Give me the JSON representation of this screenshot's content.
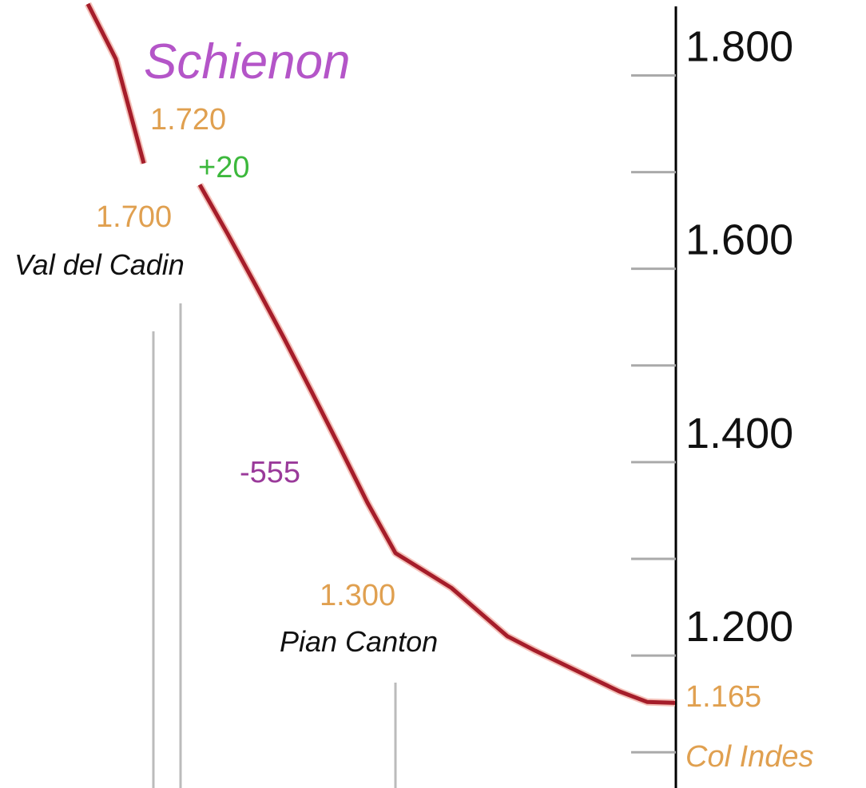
{
  "chart_data": {
    "type": "line",
    "categories": [
      null,
      null,
      null,
      null,
      null,
      null,
      null,
      null,
      null,
      null,
      null,
      null,
      null,
      null,
      null,
      null,
      null,
      null,
      null,
      null,
      null,
      null
    ],
    "series": [
      {
        "color": "#a51d2a",
        "values": [
          1874,
          1817,
          1709,
          null,
          1687,
          1636,
          1583,
          1529,
          1473,
          1416,
          1358,
          1306,
          1288,
          1270,
          1245,
          1220,
          1205,
          1191,
          1177,
          1163,
          1152,
          1151
        ]
      }
    ],
    "ylim": [
      1063,
      1878
    ],
    "yticks": [
      {
        "value": 1800,
        "label": "1.800"
      },
      {
        "value": 1600,
        "label": "1.600"
      },
      {
        "value": 1400,
        "label": "1.400"
      },
      {
        "value": 1200,
        "label": "1.200"
      }
    ],
    "yminorticks": [
      1700,
      1500,
      1300,
      1100
    ],
    "annotations": {
      "peak_name": "Schienon",
      "peak_elevation": "1.720",
      "gain": "+20",
      "valley_elevation": "1.700",
      "valley_name": "Val del Cadin",
      "loss": "-555",
      "mid_elevation": "1.300",
      "mid_name": "Pian Canton",
      "end_elevation": "1.165",
      "end_name": "Col Indes"
    }
  }
}
